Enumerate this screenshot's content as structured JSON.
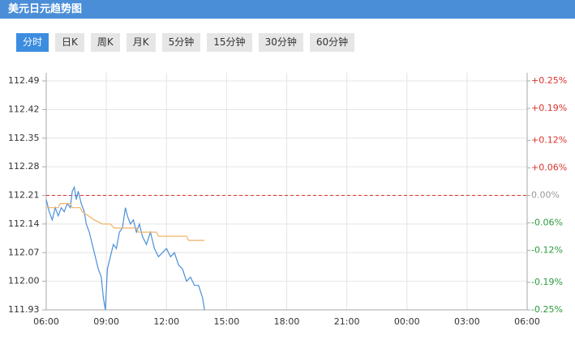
{
  "header": {
    "title": "美元日元趋势图"
  },
  "tabs": [
    "分时",
    "日K",
    "周K",
    "月K",
    "5分钟",
    "15分钟",
    "30分钟",
    "60分钟"
  ],
  "active_tab": 0,
  "chart_data": {
    "type": "line",
    "xlim": [
      0,
      24
    ],
    "xticks": [
      {
        "value": 0,
        "label": "06:00"
      },
      {
        "value": 3,
        "label": "09:00"
      },
      {
        "value": 6,
        "label": "12:00"
      },
      {
        "value": 9,
        "label": "15:00"
      },
      {
        "value": 12,
        "label": "18:00"
      },
      {
        "value": 15,
        "label": "21:00"
      },
      {
        "value": 18,
        "label": "00:00"
      },
      {
        "value": 21,
        "label": "03:00"
      },
      {
        "value": 24,
        "label": "06:00"
      }
    ],
    "ylim": [
      111.93,
      112.49
    ],
    "yticks": [
      112.49,
      112.42,
      112.35,
      112.28,
      112.21,
      112.14,
      112.07,
      {
        "value": 112,
        "label": "112.00"
      },
      111.93
    ],
    "y2lim": [
      -0.25,
      0.25
    ],
    "y2ticks": [
      {
        "value": 0.25,
        "label": "+0.25%"
      },
      {
        "value": 0.19,
        "label": "+0.19%"
      },
      {
        "value": 0.12,
        "label": "+0.12%"
      },
      {
        "value": 0.06,
        "label": "+0.06%"
      },
      {
        "value": 0,
        "label": "0.00%"
      },
      {
        "value": -0.06,
        "label": "-0.06%"
      },
      {
        "value": -0.12,
        "label": "-0.12%"
      },
      {
        "value": -0.19,
        "label": "-0.19%"
      },
      {
        "value": -0.25,
        "label": "-0.25%"
      }
    ],
    "y2tick_colors": {
      "positive": "#d9322c",
      "zero": "#999999",
      "negative": "#2b9a3c"
    },
    "baseline": 112.21,
    "baseline_color": "#d9322c",
    "grid": true,
    "series": [
      {
        "color": "#4a8fd9",
        "x": [
          0,
          0.15,
          0.3,
          0.45,
          0.6,
          0.75,
          0.9,
          1.05,
          1.2,
          1.3,
          1.4,
          1.5,
          1.6,
          1.75,
          1.9,
          2.0,
          2.15,
          2.3,
          2.45,
          2.6,
          2.75,
          2.85,
          2.95,
          3.05,
          3.2,
          3.35,
          3.5,
          3.65,
          3.8,
          3.95,
          4.05,
          4.2,
          4.35,
          4.5,
          4.65,
          4.8,
          5.0,
          5.2,
          5.4,
          5.6,
          5.8,
          6.0,
          6.2,
          6.4,
          6.6,
          6.8,
          7.0,
          7.2,
          7.4,
          7.6,
          7.8,
          7.9
        ],
        "values": [
          112.2,
          112.17,
          112.15,
          112.18,
          112.16,
          112.18,
          112.17,
          112.19,
          112.18,
          112.22,
          112.23,
          112.2,
          112.22,
          112.19,
          112.17,
          112.14,
          112.12,
          112.09,
          112.06,
          112.03,
          112.01,
          111.96,
          111.93,
          112.03,
          112.06,
          112.09,
          112.08,
          112.12,
          112.13,
          112.18,
          112.16,
          112.14,
          112.15,
          112.12,
          112.14,
          112.11,
          112.09,
          112.12,
          112.08,
          112.06,
          112.07,
          112.08,
          112.06,
          112.07,
          112.04,
          112.03,
          112.0,
          112.01,
          111.99,
          111.99,
          111.96,
          111.93
        ]
      },
      {
        "color": "#f0b266",
        "x": [
          0,
          0.6,
          0.7,
          1.2,
          1.3,
          1.7,
          1.8,
          2.1,
          2.4,
          2.8,
          3.2,
          3.4,
          4.5,
          4.6,
          5.5,
          5.6,
          7.0,
          7.1,
          7.9
        ],
        "values": [
          112.18,
          112.18,
          112.19,
          112.19,
          112.18,
          112.18,
          112.17,
          112.16,
          112.15,
          112.14,
          112.14,
          112.13,
          112.13,
          112.12,
          112.12,
          112.11,
          112.11,
          112.1,
          112.1
        ]
      }
    ]
  }
}
